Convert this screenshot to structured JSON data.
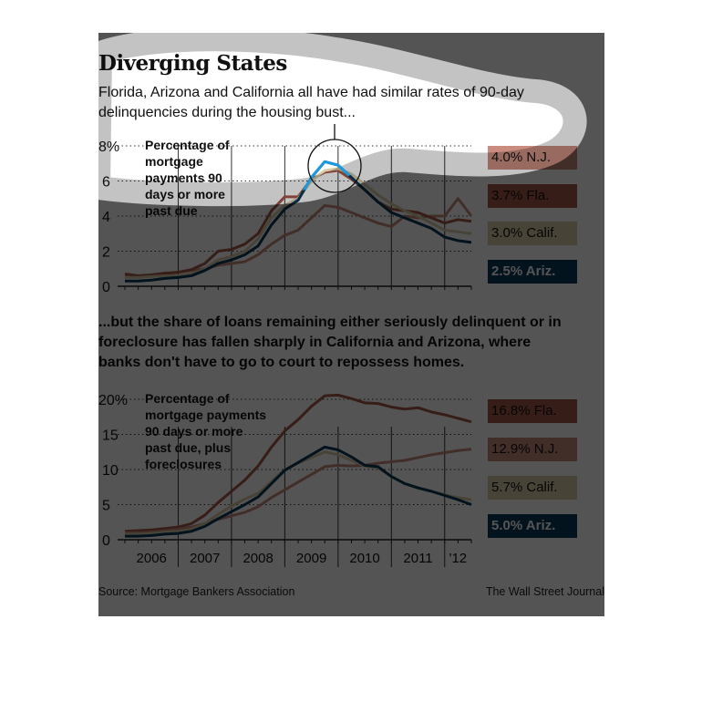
{
  "title": "Diverging States",
  "subtitle": "Florida, Arizona and California all have had similar rates of 90-day delinquencies during the housing bust...",
  "middle_text": "...but the share of loans remaining either seriously delinquent or in foreclosure has fallen sharply in California and Arizona, where banks don't have to go to court to repossess homes.",
  "source": "Source: Mortgage Bankers Association",
  "credit": "The Wall Street Journal",
  "colors": {
    "fla": "#a85848",
    "nj": "#c98c7e",
    "calif": "#d8cca8",
    "ariz": "#0b3a5a",
    "highlight": "#1a9ae0",
    "overlay": "#555555"
  },
  "chart_data": [
    {
      "type": "line",
      "title": "Percentage of mortgage payments 90 days or more past due",
      "x": [
        2006.0,
        2006.25,
        2006.5,
        2006.75,
        2007.0,
        2007.25,
        2007.5,
        2007.75,
        2008.0,
        2008.25,
        2008.5,
        2008.75,
        2009.0,
        2009.25,
        2009.5,
        2009.75,
        2010.0,
        2010.25,
        2010.5,
        2010.75,
        2011.0,
        2011.25,
        2011.5,
        2011.75,
        2012.0,
        2012.25,
        2012.5
      ],
      "ylim": [
        0,
        8
      ],
      "yticks": [
        "0",
        "2",
        "4",
        "6",
        "8%"
      ],
      "grid": true,
      "series": [
        {
          "name": "N.J.",
          "label": "4.0% N.J.",
          "values": [
            0.6,
            0.55,
            0.6,
            0.7,
            0.8,
            0.9,
            1.0,
            1.2,
            1.3,
            1.4,
            1.8,
            2.4,
            2.9,
            3.2,
            3.9,
            4.6,
            4.5,
            4.2,
            3.9,
            3.6,
            3.4,
            4.0,
            3.9,
            4.0,
            4.0,
            5.0,
            4.0
          ]
        },
        {
          "name": "Fla.",
          "label": "3.7% Fla.",
          "values": [
            0.7,
            0.6,
            0.65,
            0.75,
            0.8,
            0.95,
            1.3,
            2.0,
            2.1,
            2.4,
            3.0,
            4.3,
            5.1,
            5.1,
            6.1,
            6.5,
            6.6,
            6.1,
            5.5,
            4.8,
            4.4,
            4.3,
            4.2,
            3.9,
            3.6,
            3.8,
            3.7
          ]
        },
        {
          "name": "Calif.",
          "label": "3.0% Calif.",
          "values": [
            0.5,
            0.5,
            0.55,
            0.6,
            0.6,
            0.7,
            1.0,
            1.5,
            1.7,
            2.0,
            2.7,
            3.9,
            4.6,
            5.0,
            6.0,
            6.6,
            6.7,
            6.4,
            5.8,
            5.2,
            4.7,
            4.3,
            4.0,
            3.6,
            3.2,
            3.1,
            3.0
          ]
        },
        {
          "name": "Ariz.",
          "label": "2.5% Ariz.",
          "values": [
            0.3,
            0.3,
            0.35,
            0.45,
            0.5,
            0.6,
            0.9,
            1.3,
            1.5,
            1.8,
            2.3,
            3.5,
            4.4,
            4.9,
            6.2,
            7.1,
            6.9,
            6.2,
            5.5,
            4.8,
            4.2,
            3.9,
            3.6,
            3.3,
            2.8,
            2.6,
            2.5
          ]
        }
      ]
    },
    {
      "type": "line",
      "title": "Percentage of mortgage payments 90 days or more past due, plus foreclosures",
      "x": [
        2006.0,
        2006.25,
        2006.5,
        2006.75,
        2007.0,
        2007.25,
        2007.5,
        2007.75,
        2008.0,
        2008.25,
        2008.5,
        2008.75,
        2009.0,
        2009.25,
        2009.5,
        2009.75,
        2010.0,
        2010.25,
        2010.5,
        2010.75,
        2011.0,
        2011.25,
        2011.5,
        2011.75,
        2012.0,
        2012.25,
        2012.5
      ],
      "ylim": [
        0,
        20
      ],
      "yticks": [
        "0",
        "5",
        "10",
        "15",
        "20%"
      ],
      "xticks": [
        "2006",
        "2007",
        "2008",
        "2009",
        "2010",
        "2011",
        "'12"
      ],
      "grid": true,
      "series": [
        {
          "name": "Fla.",
          "label": "16.8% Fla.",
          "values": [
            1.2,
            1.3,
            1.4,
            1.6,
            1.8,
            2.3,
            3.5,
            5.3,
            6.9,
            8.5,
            10.5,
            13.2,
            15.5,
            17.1,
            19.0,
            20.5,
            20.6,
            20.1,
            19.5,
            19.4,
            18.9,
            18.6,
            18.8,
            18.2,
            17.8,
            17.3,
            16.8
          ]
        },
        {
          "name": "N.J.",
          "label": "12.9% N.J.",
          "values": [
            1.0,
            1.0,
            1.1,
            1.3,
            1.5,
            1.8,
            2.3,
            2.9,
            3.4,
            3.9,
            4.7,
            6.0,
            7.1,
            8.2,
            9.3,
            10.4,
            10.6,
            10.5,
            10.6,
            10.9,
            11.1,
            11.3,
            11.7,
            12.1,
            12.4,
            12.7,
            12.9
          ]
        },
        {
          "name": "Calif.",
          "label": "5.7% Calif.",
          "values": [
            0.8,
            0.8,
            0.9,
            1.1,
            1.2,
            1.5,
            2.3,
            3.6,
            4.8,
            5.8,
            6.6,
            8.3,
            10.0,
            10.9,
            11.7,
            12.5,
            12.1,
            11.3,
            10.5,
            10.2,
            9.0,
            8.0,
            7.3,
            6.9,
            6.4,
            6.0,
            5.7
          ]
        },
        {
          "name": "Ariz.",
          "label": "5.0% Ariz.",
          "values": [
            0.5,
            0.5,
            0.6,
            0.8,
            0.9,
            1.2,
            1.9,
            3.0,
            4.0,
            5.0,
            6.1,
            8.0,
            9.9,
            11.0,
            12.1,
            13.2,
            12.8,
            11.8,
            10.6,
            10.4,
            9.0,
            8.0,
            7.4,
            6.9,
            6.3,
            5.7,
            5.0
          ]
        }
      ]
    }
  ]
}
